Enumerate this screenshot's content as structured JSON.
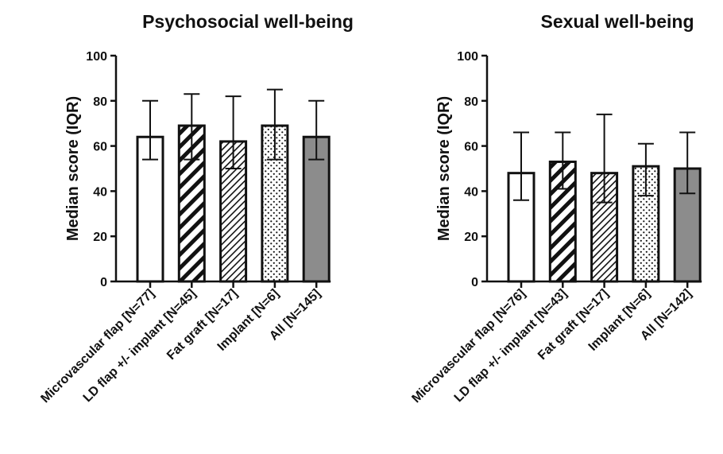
{
  "chart_data": [
    {
      "type": "bar",
      "title": "Psychosocial well-being",
      "xlabel": "",
      "ylabel": "Median score (IQR)",
      "ylim": [
        0,
        100
      ],
      "yticks": [
        "0",
        "20",
        "40",
        "60",
        "80",
        "100"
      ],
      "categories": [
        "Microvascular flap [N=77]",
        "LD flap +/- implant [N=45]",
        "Fat graft [N=17]",
        "Implant [N=6]",
        "All [N=145]"
      ],
      "values": [
        64,
        69,
        62,
        69,
        64
      ],
      "iqr_low": [
        54,
        54,
        50,
        54,
        54
      ],
      "iqr_high": [
        80,
        83,
        82,
        85,
        80
      ],
      "grid": false
    },
    {
      "type": "bar",
      "title": "Sexual well-being",
      "xlabel": "",
      "ylabel": "Median score (IQR)",
      "ylim": [
        0,
        100
      ],
      "yticks": [
        "0",
        "20",
        "40",
        "60",
        "80",
        "100"
      ],
      "categories": [
        "Microvascular flap [N=76]",
        "LD flap +/- implant [N=43]",
        "Fat graft [N=17]",
        "Implant [N=6]",
        "All [N=142]"
      ],
      "values": [
        48,
        53,
        48,
        51,
        50
      ],
      "iqr_low": [
        36,
        41,
        35,
        38,
        39
      ],
      "iqr_high": [
        66,
        66,
        74,
        61,
        66
      ],
      "grid": false
    }
  ],
  "bar_styles": [
    "white",
    "bold-hatch",
    "fine-hatch",
    "dots",
    "gray"
  ],
  "colors": {
    "stroke": "#111111",
    "gray_fill": "#8c8c8c",
    "white_fill": "#ffffff"
  }
}
